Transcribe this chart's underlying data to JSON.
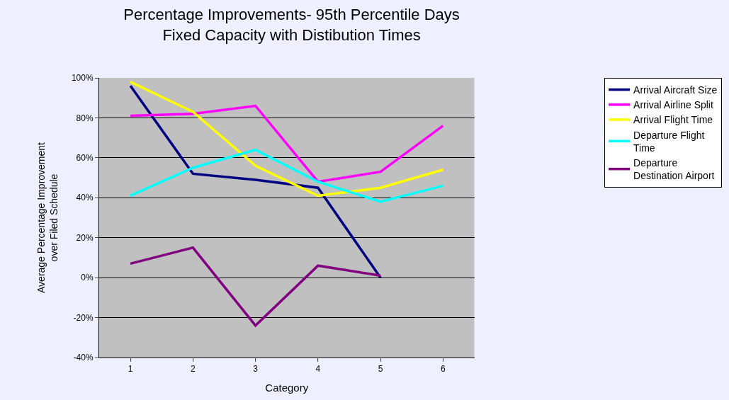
{
  "chart_data": {
    "type": "line",
    "title": "Percentage Improvements- 95th Percentile Days\nFixed Capacity with Distibution Times",
    "xlabel": "Category",
    "ylabel": "Average Percentage Improvement\nover Filed Schedule",
    "categories": [
      "1",
      "2",
      "3",
      "4",
      "5",
      "6"
    ],
    "series": [
      {
        "name": "Arrival Aircraft Size",
        "color": "#000080",
        "values": [
          96,
          52,
          49,
          45,
          0,
          null
        ]
      },
      {
        "name": "Arrival Airline Split",
        "color": "#ff00ff",
        "values": [
          81,
          82,
          86,
          48,
          53,
          76
        ]
      },
      {
        "name": "Arrival Flight Time",
        "color": "#ffff00",
        "values": [
          98,
          83,
          56,
          41,
          45,
          54
        ]
      },
      {
        "name": "Departure Flight\nTime",
        "color": "#00ffff",
        "values": [
          41,
          55,
          64,
          48,
          38,
          46
        ]
      },
      {
        "name": "Departure\nDestination Airport",
        "color": "#800080",
        "values": [
          7,
          15,
          -24,
          6,
          1,
          null
        ]
      }
    ],
    "ylim": [
      -40,
      100
    ],
    "yticks": [
      {
        "value": -40,
        "label": "-40%"
      },
      {
        "value": -20,
        "label": "-20%"
      },
      {
        "value": 0,
        "label": "0%"
      },
      {
        "value": 20,
        "label": "20%"
      },
      {
        "value": 40,
        "label": "40%"
      },
      {
        "value": 60,
        "label": "60%"
      },
      {
        "value": 80,
        "label": "80%"
      },
      {
        "value": 100,
        "label": "100%"
      }
    ],
    "grid": "y",
    "legend": "right",
    "marker": "none",
    "line_style": "solid"
  }
}
